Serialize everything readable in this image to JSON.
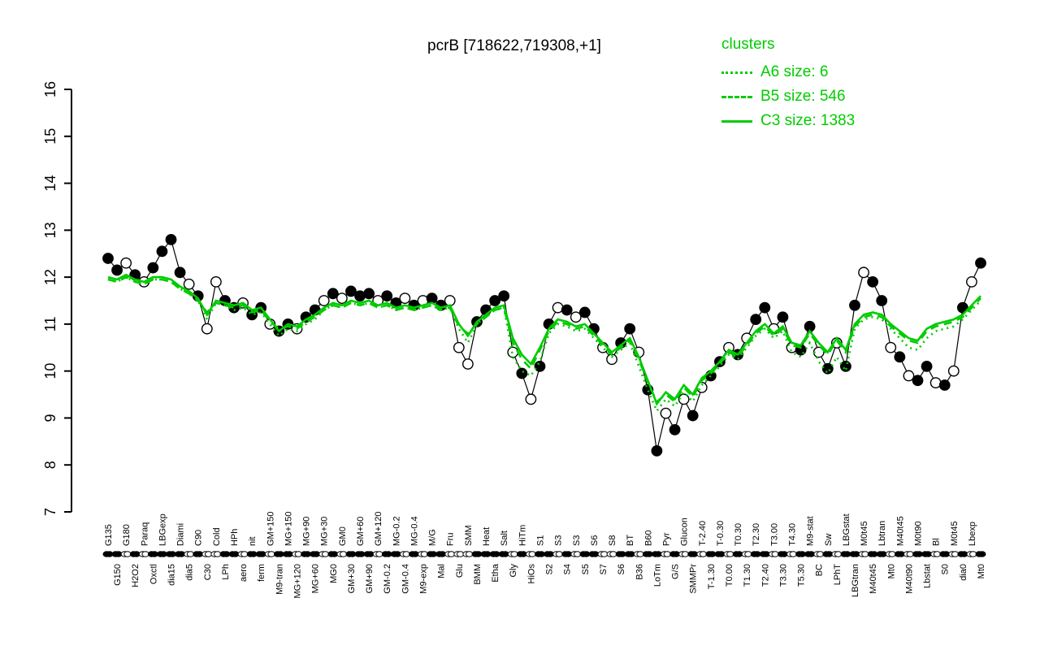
{
  "colors": {
    "cluster_green": "#00CC00",
    "points_black": "#000000"
  },
  "chart_data": {
    "type": "scatter",
    "title": "pcrB [718622,719308,+1]",
    "xlabel": "",
    "ylabel": "",
    "ylim": [
      7,
      16
    ],
    "yticks": [
      7,
      8,
      9,
      10,
      11,
      12,
      13,
      14,
      15,
      16
    ],
    "grid": false,
    "legend": {
      "title": "clusters",
      "position": "top-right",
      "entries": [
        {
          "label": "A6 size: 6",
          "style": "dotted"
        },
        {
          "label": "B5 size: 546",
          "style": "dashed"
        },
        {
          "label": "C3 size: 1383",
          "style": "solid"
        }
      ]
    },
    "categories": [
      "G135",
      "G150",
      "G180",
      "H2O2",
      "Paraq",
      "Oxctl",
      "LBGexp",
      "dia15",
      "Diami",
      "dia5",
      "C90",
      "C30",
      "Cold",
      "LPh",
      "HPh",
      "aero",
      "nit",
      "ferm",
      "GM+150",
      "M9-tran",
      "MG+150",
      "MG+120",
      "MG+90",
      "MG+60",
      "MG+30",
      "MG0",
      "GM0",
      "GM+30",
      "GM+60",
      "GM+90",
      "GM+120",
      "GM-0.2",
      "MG-0.2",
      "GM-0.4",
      "MG-0.4",
      "M9-exp",
      "M/G",
      "Mal",
      "Fru",
      "Glu",
      "SMM",
      "BMM",
      "Heat",
      "Etha",
      "Salt",
      "Gly",
      "HiTm",
      "HiOs",
      "S1",
      "S2",
      "S3",
      "S4",
      "S3",
      "S5",
      "S6",
      "S7",
      "S8",
      "S6",
      "BT",
      "B36",
      "B60",
      "LoTm",
      "Pyr",
      "G/S",
      "Glucon",
      "SMMPr",
      "T-2.40",
      "T-1.30",
      "T-0.30",
      "T0.00",
      "T0.30",
      "T1.30",
      "T2.30",
      "T2.40",
      "T3.00",
      "T3.30",
      "T4.30",
      "T5.30",
      "M9-stat",
      "BC",
      "Sw",
      "LPhT",
      "LBGstat",
      "LBGtran",
      "M0t45",
      "M40t45",
      "Lbtran",
      "Mt0",
      "M40t45",
      "M40t90",
      "M0t90",
      "Lbstat",
      "Bl",
      "S0",
      "M0t45",
      "dia0",
      "Lbexp",
      "Mt0"
    ],
    "series": [
      {
        "name": "expression",
        "color": "#000000",
        "marker": "circle",
        "open_points": [
          2,
          4,
          9,
          11,
          12,
          15,
          18,
          21,
          24,
          26,
          30,
          33,
          35,
          38,
          39,
          40,
          45,
          47,
          50,
          52,
          55,
          56,
          59,
          62,
          64,
          66,
          69,
          71,
          74,
          76,
          79,
          81,
          84,
          87,
          89,
          92,
          94,
          96
        ],
        "values": [
          12.4,
          12.15,
          12.3,
          12.05,
          11.9,
          12.2,
          12.55,
          12.8,
          12.1,
          11.85,
          11.6,
          10.9,
          11.9,
          11.5,
          11.35,
          11.45,
          11.2,
          11.35,
          11.0,
          10.85,
          11.0,
          10.9,
          11.15,
          11.3,
          11.5,
          11.65,
          11.55,
          11.7,
          11.6,
          11.65,
          11.5,
          11.6,
          11.45,
          11.55,
          11.4,
          11.5,
          11.55,
          11.4,
          11.5,
          10.5,
          10.15,
          11.05,
          11.3,
          11.5,
          11.6,
          10.4,
          9.95,
          9.4,
          10.1,
          11.0,
          11.35,
          11.3,
          11.15,
          11.25,
          10.9,
          10.5,
          10.25,
          10.6,
          10.9,
          10.4,
          9.6,
          8.3,
          9.1,
          8.75,
          9.4,
          9.05,
          9.65,
          9.9,
          10.2,
          10.5,
          10.35,
          10.7,
          11.1,
          11.35,
          10.9,
          11.15,
          10.5,
          10.45,
          10.95,
          10.4,
          10.05,
          10.6,
          10.1,
          11.4,
          12.1,
          11.9,
          11.5,
          10.5,
          10.3,
          9.9,
          9.8,
          10.1,
          9.75,
          9.7,
          10.0,
          11.35,
          11.9,
          12.3
        ]
      },
      {
        "name": "A6",
        "color": "#00CC00",
        "dash": "dotted",
        "values": [
          11.95,
          11.9,
          12.0,
          11.9,
          11.85,
          11.95,
          11.95,
          11.9,
          11.75,
          11.65,
          11.5,
          11.1,
          11.45,
          11.4,
          11.3,
          11.35,
          11.2,
          11.25,
          11.0,
          10.75,
          10.9,
          10.85,
          11.0,
          11.1,
          11.3,
          11.4,
          11.35,
          11.45,
          11.4,
          11.45,
          11.35,
          11.4,
          11.3,
          11.35,
          11.3,
          11.35,
          11.4,
          11.3,
          11.35,
          10.9,
          10.6,
          11.0,
          11.15,
          11.3,
          11.35,
          10.3,
          10.0,
          9.9,
          10.2,
          10.8,
          11.0,
          10.95,
          10.85,
          10.9,
          10.7,
          10.5,
          10.3,
          10.45,
          10.6,
          10.1,
          9.6,
          9.15,
          9.4,
          9.25,
          9.55,
          9.35,
          9.7,
          9.9,
          10.1,
          10.35,
          10.25,
          10.5,
          10.75,
          10.9,
          10.7,
          10.85,
          10.4,
          10.3,
          10.6,
          10.2,
          9.95,
          10.3,
          10.0,
          10.9,
          11.1,
          11.15,
          11.1,
          10.9,
          10.7,
          10.5,
          10.45,
          10.7,
          10.85,
          10.9,
          10.95,
          11.1,
          11.3,
          11.5
        ]
      },
      {
        "name": "B5",
        "color": "#00CC00",
        "dash": "dashed",
        "values": [
          11.95,
          11.9,
          12.0,
          11.9,
          11.85,
          11.95,
          11.95,
          11.9,
          11.75,
          11.65,
          11.5,
          11.25,
          11.45,
          11.4,
          11.35,
          11.4,
          11.25,
          11.3,
          11.05,
          10.9,
          10.95,
          10.9,
          11.05,
          11.15,
          11.3,
          11.4,
          11.35,
          11.45,
          11.4,
          11.45,
          11.35,
          11.4,
          11.3,
          11.35,
          11.3,
          11.35,
          11.4,
          11.3,
          11.35,
          10.95,
          10.8,
          11.0,
          11.15,
          11.3,
          11.35,
          10.6,
          10.25,
          10.05,
          10.45,
          10.85,
          11.05,
          11.0,
          10.9,
          10.95,
          10.75,
          10.55,
          10.35,
          10.5,
          10.65,
          10.25,
          9.75,
          9.35,
          9.5,
          9.35,
          9.65,
          9.45,
          9.8,
          9.95,
          10.15,
          10.4,
          10.3,
          10.55,
          10.8,
          10.95,
          10.75,
          10.9,
          10.55,
          10.5,
          10.8,
          10.55,
          10.35,
          10.65,
          10.4,
          10.95,
          11.15,
          11.2,
          11.15,
          10.95,
          10.8,
          10.65,
          10.6,
          10.85,
          10.95,
          11.0,
          11.05,
          11.15,
          11.35,
          11.55
        ]
      },
      {
        "name": "C3",
        "color": "#00CC00",
        "dash": "solid",
        "values": [
          12.0,
          11.95,
          12.05,
          11.95,
          11.9,
          12.0,
          12.0,
          11.95,
          11.8,
          11.7,
          11.55,
          11.2,
          11.5,
          11.45,
          11.4,
          11.45,
          11.3,
          11.35,
          11.1,
          10.85,
          11.0,
          10.95,
          11.1,
          11.2,
          11.35,
          11.45,
          11.4,
          11.5,
          11.45,
          11.5,
          11.4,
          11.45,
          11.35,
          11.4,
          11.35,
          11.4,
          11.45,
          11.35,
          11.4,
          11.0,
          10.75,
          11.05,
          11.2,
          11.35,
          11.4,
          10.7,
          10.35,
          10.15,
          10.5,
          10.9,
          11.1,
          11.05,
          10.95,
          11.0,
          10.8,
          10.6,
          10.4,
          10.55,
          10.7,
          10.3,
          9.8,
          9.3,
          9.55,
          9.4,
          9.7,
          9.5,
          9.85,
          10.0,
          10.2,
          10.45,
          10.35,
          10.6,
          10.85,
          11.0,
          10.8,
          10.95,
          10.6,
          10.55,
          10.85,
          10.6,
          10.4,
          10.7,
          10.45,
          11.0,
          11.2,
          11.25,
          11.2,
          11.0,
          10.85,
          10.7,
          10.65,
          10.9,
          11.0,
          11.05,
          11.1,
          11.2,
          11.4,
          11.6
        ]
      }
    ]
  }
}
